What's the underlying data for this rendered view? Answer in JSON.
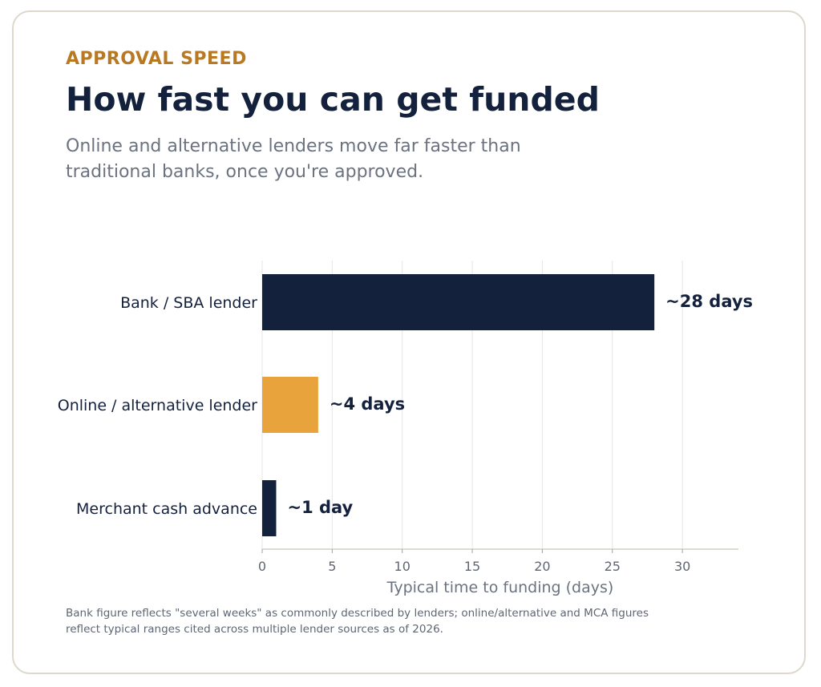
{
  "header": {
    "eyebrow": "APPROVAL SPEED",
    "title": "How fast you can get funded",
    "subtitle": "Online and alternative lenders move far faster than traditional banks, once you're approved."
  },
  "chart_data": {
    "type": "bar",
    "orientation": "horizontal",
    "categories": [
      "Bank / SBA lender",
      "Online / alternative lender",
      "Merchant cash advance"
    ],
    "values": [
      28,
      4,
      1
    ],
    "data_labels": [
      "~28 days",
      "~4 days",
      "~1 day"
    ],
    "bar_colors": [
      "#14213d",
      "#e8a33d",
      "#14213d"
    ],
    "xlabel": "Typical time to funding (days)",
    "ylabel": "",
    "xlim": [
      0,
      34
    ],
    "x_ticks": [
      0,
      5,
      10,
      15,
      20,
      25,
      30
    ],
    "grid": "vertical"
  },
  "footnote": "Bank figure reflects \"several weeks\" as commonly described by lenders; online/alternative and MCA figures reflect typical ranges cited across multiple lender sources as of 2026.",
  "colors": {
    "navy": "#14213d",
    "accent": "#e8a33d",
    "eyebrow": "#b87922",
    "muted_text": "#6b7280",
    "grid": "#e5e5e5",
    "border": "#ddd8cc"
  }
}
